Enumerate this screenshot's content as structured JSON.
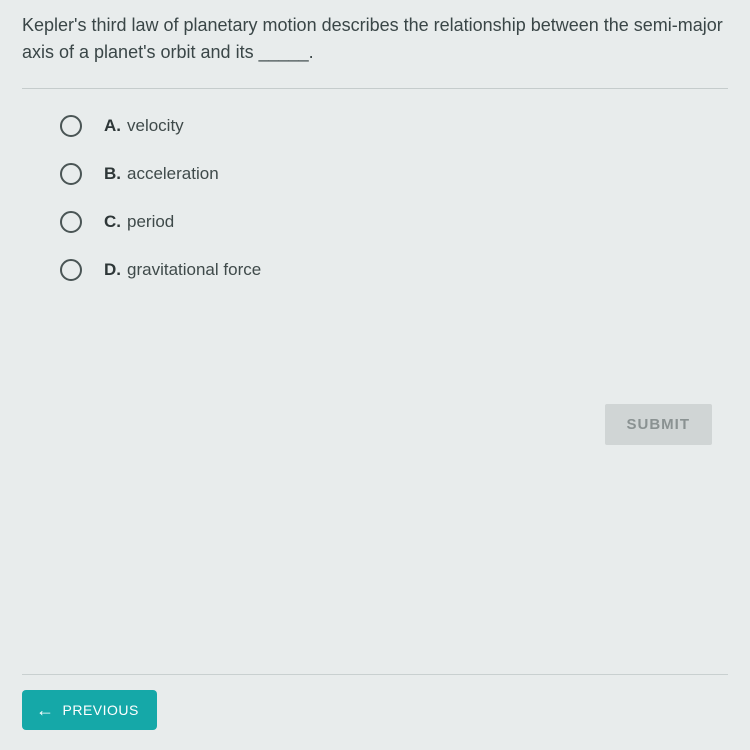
{
  "question": {
    "text": "Kepler's third law of planetary motion describes the relationship between the semi-major axis of a planet's orbit and its _____."
  },
  "options": [
    {
      "letter": "A.",
      "text": "velocity"
    },
    {
      "letter": "B.",
      "text": "acceleration"
    },
    {
      "letter": "C.",
      "text": "period"
    },
    {
      "letter": "D.",
      "text": "gravitational force"
    }
  ],
  "buttons": {
    "submit": "SUBMIT",
    "previous": "PREVIOUS"
  },
  "colors": {
    "background": "#e8ecec",
    "question_text": "#3a4647",
    "divider": "#c5cccc",
    "radio_border": "#4a5555",
    "option_letter": "#2e3738",
    "option_text": "#3f4a4a",
    "submit_bg": "#d0d5d5",
    "submit_text": "#8a9292",
    "previous_bg": "#15a8a8",
    "previous_text": "#ffffff"
  }
}
